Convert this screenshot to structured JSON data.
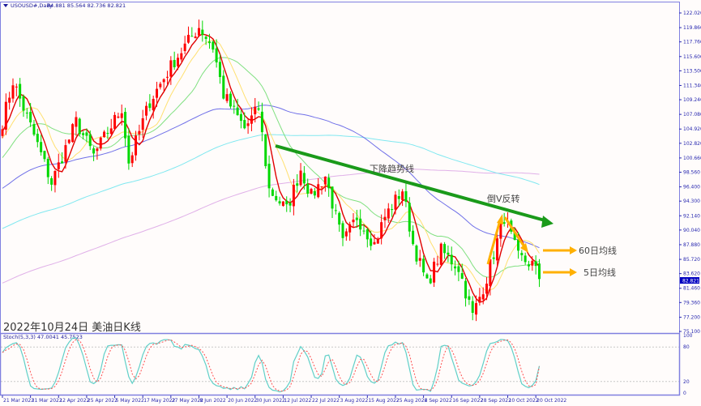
{
  "header": {
    "symbol": "USOUSD#,Daily",
    "ohlc": "84.881 85.564 82.736 82.821"
  },
  "caption": "2022年10月24日 美油日K线",
  "current_price": "82.821",
  "stoch": {
    "label": "Stoch(5,3,3) 47.0041 45.7523",
    "levels": [
      "100",
      "80",
      "20",
      "0"
    ]
  },
  "annotations": {
    "trend": "下降趋势线",
    "reversal": "倒V反转",
    "ma60": "60日均线",
    "ma5": "5日均线"
  },
  "colors": {
    "bull": "#ff0000",
    "bear": "#00d800",
    "ma5": "#e00000",
    "ma10": "#ffe070",
    "ma20": "#80e080",
    "ma60": "#7070e8",
    "ma120": "#80e8f0",
    "ma200": "#e0b0e8",
    "trendline": "#1a9a1a",
    "arrow": "#ffb000",
    "stoch_main": "#60d0c8",
    "stoch_signal": "#ff5050"
  },
  "chart_data": {
    "type": "candlestick",
    "title": "USOUSD#,Daily",
    "ylim": [
      75.1,
      122.02
    ],
    "price_ticks": [
      "122.020",
      "119.860",
      "117.760",
      "115.600",
      "113.500",
      "111.340",
      "109.240",
      "107.080",
      "104.920",
      "102.820",
      "100.660",
      "98.560",
      "96.400",
      "94.300",
      "92.140",
      "90.040",
      "87.880",
      "85.720",
      "83.620",
      "81.460",
      "79.360",
      "77.200",
      "75.100"
    ],
    "date_ticks": [
      "21 Mar 2022",
      "31 Mar 2022",
      "12 Apr 2022",
      "25 Apr 2022",
      "5 May 2022",
      "17 May 2022",
      "27 May 2022",
      "8 Jun 2022",
      "20 Jun 2022",
      "30 Jun 2022",
      "12 Jul 2022",
      "22 Jul 2022",
      "3 Aug 2022",
      "15 Aug 2022",
      "25 Aug 2022",
      "6 Sep 2022",
      "16 Sep 2022",
      "28 Sep 2022",
      "10 Oct 2022",
      "20 Oct 2022"
    ],
    "bars_per_date_tick": 8,
    "bar_count": 154,
    "close_keypoints": [
      [
        0,
        106
      ],
      [
        3,
        112
      ],
      [
        9,
        104
      ],
      [
        14,
        97
      ],
      [
        21,
        106
      ],
      [
        26,
        101
      ],
      [
        34,
        108
      ],
      [
        36,
        100
      ],
      [
        42,
        109
      ],
      [
        49,
        115
      ],
      [
        56,
        120
      ],
      [
        60,
        117
      ],
      [
        63,
        110
      ],
      [
        69,
        105
      ],
      [
        73,
        108
      ],
      [
        76,
        96
      ],
      [
        81,
        93
      ],
      [
        85,
        99
      ],
      [
        88,
        95
      ],
      [
        92,
        98
      ],
      [
        97,
        88
      ],
      [
        101,
        92
      ],
      [
        106,
        88
      ],
      [
        109,
        92
      ],
      [
        114,
        96
      ],
      [
        117,
        88
      ],
      [
        121,
        82
      ],
      [
        125,
        87
      ],
      [
        130,
        84.5
      ],
      [
        134,
        77.4
      ],
      [
        138,
        83
      ],
      [
        143,
        92
      ],
      [
        147,
        86
      ],
      [
        151,
        85
      ],
      [
        153,
        82.821
      ]
    ],
    "moving_averages": [
      5,
      10,
      20,
      60,
      120,
      200
    ],
    "stochastic": {
      "k": 5,
      "d": 3,
      "slowing": 3,
      "levels": [
        20,
        80
      ],
      "last_main": 47.0041,
      "last_signal": 45.7523
    }
  }
}
